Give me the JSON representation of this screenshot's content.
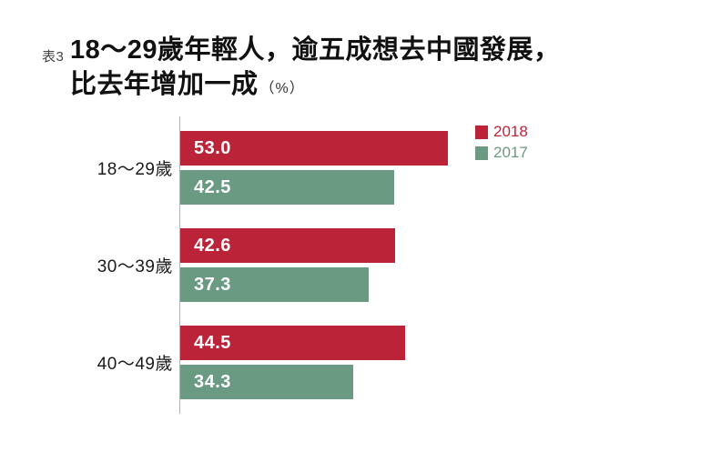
{
  "header": {
    "tag": "表3",
    "title_line1": "18〜29歲年輕人，逾五成想去中國發展，",
    "title_line2": "比去年增加一成",
    "unit_label": "（%）"
  },
  "chart_data": {
    "type": "bar",
    "orientation": "horizontal",
    "title": "18〜29歲年輕人，逾五成想去中國發展，比去年增加一成",
    "unit": "%",
    "categories": [
      "18〜29歲",
      "30〜39歲",
      "40〜49歲"
    ],
    "series": [
      {
        "name": "2018",
        "color": "#bb2438",
        "values": [
          53.0,
          42.6,
          44.5
        ]
      },
      {
        "name": "2017",
        "color": "#6b9a83",
        "values": [
          42.5,
          37.3,
          34.3
        ]
      }
    ],
    "xlim": [
      0,
      100
    ],
    "grid": false,
    "legend_position": "top-right",
    "value_label_color": "#ffffff",
    "axis_line_color": "#b3b3b3"
  }
}
